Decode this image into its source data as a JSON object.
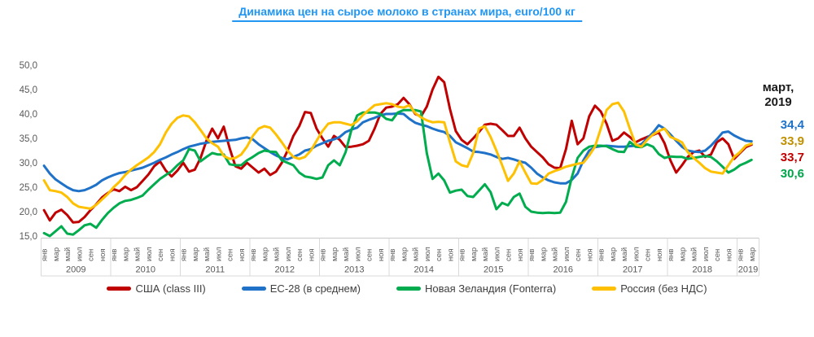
{
  "title": "Динамика цен на сырое молоко в странах мира, euro/100 кг",
  "annotation": {
    "line1": "март,",
    "line2": "2019"
  },
  "y_axis": {
    "ticks": [
      "50,0",
      "45,0",
      "40,0",
      "35,0",
      "30,0",
      "25,0",
      "20,0",
      "15,0"
    ]
  },
  "x_axis": {
    "month_labels": [
      "янв",
      "мар",
      "май",
      "июл",
      "сен",
      "ноя"
    ],
    "years": [
      "2009",
      "2010",
      "2011",
      "2012",
      "2013",
      "2014",
      "2015",
      "2016",
      "2017",
      "2018"
    ],
    "final_year": "2019",
    "final_year_months": [
      "янв",
      "мар"
    ]
  },
  "chart_data": {
    "type": "line",
    "title": "Динамика цен на сырое молоко в странах мира, euro/100 кг",
    "x_start": "2009-01",
    "x_end": "2019-03",
    "x_step": "month",
    "ylim": [
      15,
      50
    ],
    "grid": false,
    "legend_position": "bottom",
    "series": [
      {
        "name": "США (class III)",
        "color": "#C00000",
        "end_value": "33,7",
        "values": [
          20.3,
          18.2,
          19.8,
          20.4,
          19.3,
          17.8,
          17.9,
          18.9,
          20.3,
          21.5,
          22.9,
          23.8,
          24.6,
          24.2,
          25.1,
          24.4,
          25.0,
          26.3,
          27.6,
          29.3,
          30.3,
          28.4,
          27.2,
          28.4,
          30.0,
          28.2,
          28.6,
          31.0,
          34.5,
          37.0,
          35.0,
          37.4,
          33.0,
          29.3,
          28.8,
          30.0,
          29.0,
          28.0,
          28.8,
          27.5,
          28.2,
          30.0,
          32.5,
          35.5,
          37.5,
          40.4,
          40.2,
          37.0,
          35.0,
          33.3,
          35.5,
          34.7,
          33.2,
          33.3,
          33.5,
          33.8,
          34.5,
          37.0,
          40.0,
          41.3,
          41.5,
          42.0,
          43.3,
          42.0,
          40.0,
          39.5,
          41.5,
          45.0,
          47.6,
          46.5,
          41.0,
          36.5,
          34.7,
          33.8,
          35.0,
          36.3,
          37.8,
          38.0,
          37.8,
          36.7,
          35.5,
          35.5,
          37.2,
          35.0,
          33.3,
          32.2,
          31.1,
          29.7,
          29.0,
          28.9,
          32.8,
          38.6,
          33.8,
          35.0,
          39.5,
          41.7,
          40.5,
          38.0,
          34.5,
          35.0,
          36.2,
          35.3,
          34.2,
          34.8,
          35.3,
          35.7,
          36.2,
          34.0,
          30.5,
          28.0,
          29.5,
          31.2,
          32.2,
          32.5,
          31.2,
          31.7,
          34.2,
          35.0,
          33.8,
          30.8,
          32.0,
          33.2,
          33.7
        ]
      },
      {
        "name": "ЕС-28 (в среднем)",
        "color": "#1F72C8",
        "end_value": "34,4",
        "values": [
          29.4,
          27.8,
          26.6,
          25.8,
          25.0,
          24.4,
          24.2,
          24.4,
          24.9,
          25.5,
          26.4,
          27.0,
          27.5,
          27.9,
          28.1,
          28.4,
          28.7,
          29.0,
          29.5,
          30.0,
          30.6,
          31.1,
          31.7,
          32.2,
          32.8,
          33.3,
          33.6,
          33.9,
          34.1,
          34.3,
          34.4,
          34.5,
          34.6,
          34.7,
          35.0,
          35.2,
          34.8,
          33.8,
          33.0,
          32.2,
          31.5,
          31.0,
          30.7,
          31.2,
          31.7,
          32.5,
          32.8,
          33.5,
          34.0,
          34.5,
          34.8,
          35.3,
          36.3,
          36.8,
          37.2,
          38.3,
          38.8,
          39.2,
          39.7,
          40.0,
          40.0,
          40.1,
          40.0,
          39.0,
          38.2,
          37.8,
          37.5,
          37.0,
          36.6,
          36.3,
          35.5,
          34.2,
          33.6,
          33.0,
          32.3,
          32.2,
          32.0,
          31.7,
          31.2,
          30.8,
          31.0,
          30.7,
          30.3,
          30.0,
          29.0,
          27.8,
          27.0,
          26.4,
          26.0,
          25.8,
          25.8,
          26.5,
          27.8,
          30.5,
          32.5,
          33.2,
          33.4,
          33.5,
          33.4,
          33.3,
          33.3,
          33.4,
          33.5,
          33.8,
          35.0,
          36.2,
          37.7,
          37.0,
          35.8,
          34.5,
          33.3,
          32.5,
          32.3,
          32.2,
          32.5,
          33.5,
          34.8,
          36.2,
          36.4,
          35.6,
          35.0,
          34.5,
          34.4
        ]
      },
      {
        "name": "Новая Зеландия (Fonterra)",
        "color": "#00AC4E",
        "end_value": "30,6",
        "values": [
          15.6,
          15.0,
          16.0,
          17.0,
          15.5,
          15.3,
          16.2,
          17.2,
          17.5,
          16.7,
          18.3,
          19.7,
          20.8,
          21.7,
          22.2,
          22.4,
          22.8,
          23.3,
          24.5,
          25.6,
          26.7,
          27.5,
          28.3,
          29.5,
          30.5,
          32.8,
          32.5,
          30.3,
          31.2,
          32.0,
          31.7,
          31.7,
          29.7,
          29.5,
          29.5,
          30.5,
          31.2,
          32.0,
          32.5,
          32.3,
          32.2,
          30.5,
          30.0,
          29.5,
          28.0,
          27.2,
          27.0,
          26.7,
          27.0,
          29.5,
          30.5,
          29.5,
          32.2,
          36.7,
          39.7,
          40.3,
          40.3,
          40.3,
          40.0,
          39.0,
          38.7,
          40.3,
          40.8,
          40.8,
          40.8,
          40.5,
          32.0,
          26.7,
          27.8,
          26.4,
          23.9,
          24.3,
          24.5,
          23.2,
          23.0,
          24.3,
          25.6,
          24.0,
          20.5,
          21.8,
          21.3,
          23.0,
          23.7,
          21.0,
          20.0,
          19.8,
          19.7,
          19.8,
          19.7,
          19.8,
          22.0,
          27.0,
          31.0,
          32.5,
          33.3,
          33.5,
          33.5,
          33.4,
          32.8,
          32.3,
          32.2,
          34.3,
          33.3,
          33.2,
          33.8,
          33.3,
          31.8,
          31.0,
          31.3,
          31.2,
          31.2,
          30.8,
          31.0,
          31.2,
          31.4,
          31.2,
          30.3,
          29.2,
          28.0,
          28.6,
          29.5,
          30.0,
          30.6
        ]
      },
      {
        "name": "Россия (без НДС)",
        "color": "#FFC000",
        "end_value": "33,9",
        "values": [
          26.4,
          24.4,
          24.2,
          23.9,
          23.0,
          21.7,
          21.0,
          20.8,
          20.6,
          21.4,
          22.5,
          23.6,
          25.0,
          26.1,
          27.5,
          28.6,
          29.5,
          30.3,
          31.1,
          32.2,
          33.8,
          36.2,
          38.0,
          39.2,
          39.7,
          39.5,
          38.3,
          36.7,
          35.0,
          34.0,
          33.3,
          31.4,
          30.8,
          31.0,
          31.7,
          33.3,
          35.5,
          37.0,
          37.5,
          37.2,
          35.8,
          34.2,
          32.5,
          31.2,
          30.8,
          31.2,
          32.5,
          34.5,
          36.5,
          38.0,
          38.3,
          38.3,
          38.0,
          37.7,
          38.5,
          39.8,
          40.8,
          41.8,
          42.0,
          42.2,
          42.0,
          41.5,
          41.3,
          41.8,
          40.2,
          39.3,
          38.7,
          38.3,
          38.4,
          38.3,
          34.2,
          30.3,
          29.5,
          29.2,
          32.0,
          37.0,
          37.5,
          35.3,
          32.5,
          29.5,
          26.3,
          27.8,
          30.3,
          28.0,
          25.8,
          25.7,
          26.5,
          27.8,
          28.3,
          28.7,
          29.2,
          29.5,
          29.8,
          30.0,
          31.5,
          33.3,
          37.0,
          40.8,
          42.0,
          42.3,
          40.5,
          37.0,
          33.8,
          33.3,
          34.7,
          35.8,
          36.5,
          37.0,
          35.3,
          34.8,
          34.2,
          32.2,
          31.0,
          30.0,
          28.9,
          28.2,
          28.0,
          27.8,
          29.5,
          31.2,
          32.2,
          33.5,
          33.9
        ]
      }
    ],
    "end_labels": [
      {
        "text": "34,4",
        "color": "#1F72C8"
      },
      {
        "text": "33,9",
        "color": "#BF9000"
      },
      {
        "text": "33,7",
        "color": "#C00000"
      },
      {
        "text": "30,6",
        "color": "#00A44A"
      }
    ]
  }
}
